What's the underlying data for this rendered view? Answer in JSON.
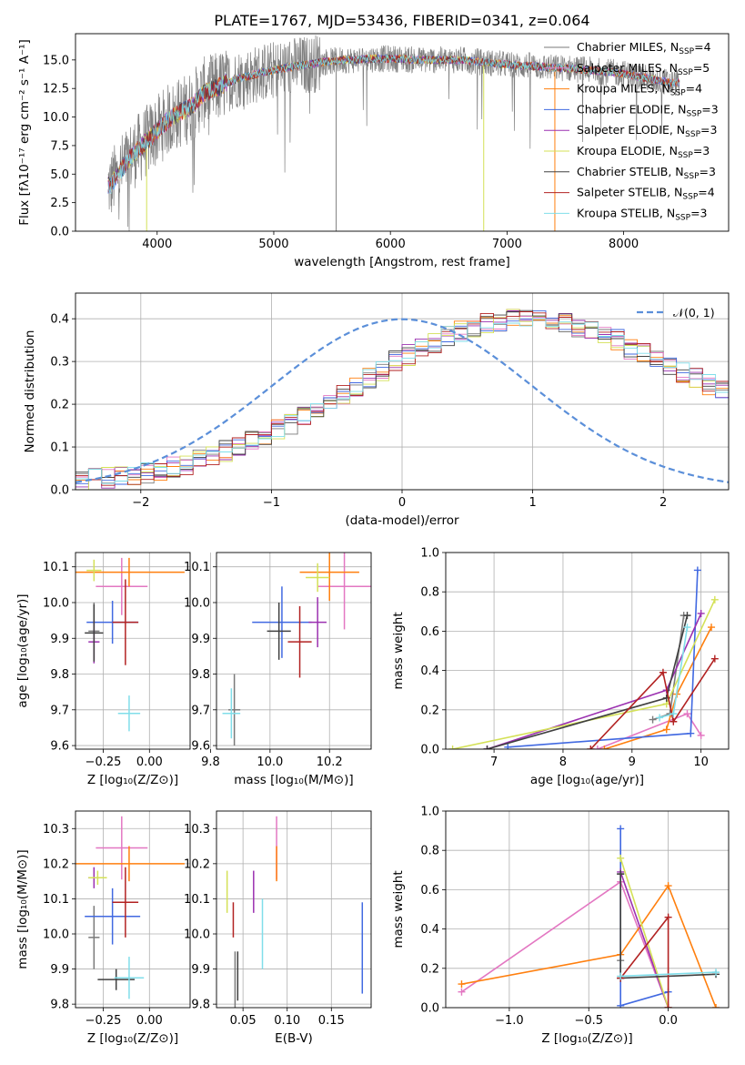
{
  "figure_title": "PLATE=1767, MJD=53436, FIBERID=0341, z=0.064",
  "colors": {
    "Chabrier MILES": "#7a7a7a",
    "Salpeter MILES": "#e377c2",
    "Kroupa MILES": "#ff7f0e",
    "Chabrier ELODIE": "#4169e1",
    "Salpeter ELODIE": "#9b30b0",
    "Kroupa ELODIE": "#d4e157",
    "Chabrier STELIB": "#404040",
    "Salpeter STELIB": "#b22222",
    "Kroupa STELIB": "#80deea",
    "normal": "#5b8fd9"
  },
  "chart_data": [
    {
      "id": "spectrum",
      "type": "line",
      "xlabel": "wavelength [Angstrom, rest frame]",
      "ylabel": "Flux [fλ10⁻¹⁷ erg cm⁻² s⁻¹ A⁻¹]",
      "xlim": [
        3300,
        8900
      ],
      "ylim": [
        0,
        17.3
      ],
      "xticks": [
        "4000",
        "5000",
        "6000",
        "7000",
        "8000"
      ],
      "yticks": [
        "0.0",
        "2.5",
        "5.0",
        "7.5",
        "10.0",
        "12.5",
        "15.0"
      ],
      "x": [
        3600,
        3700,
        3800,
        3900,
        4000,
        4100,
        4200,
        4300,
        4400,
        4500,
        4600,
        4700,
        4800,
        4900,
        5000,
        5100,
        5200,
        5300,
        5400,
        5500,
        5600,
        5700,
        5800,
        5900,
        6000,
        6100,
        6200,
        6300,
        6400,
        6500,
        6600,
        6700,
        6800,
        6900,
        7000,
        7100,
        7200,
        7300,
        7400,
        7500,
        7600,
        7700,
        7800,
        7900,
        8000,
        8100,
        8200,
        8300,
        8400
      ],
      "model_flux": [
        4.0,
        5.5,
        6.8,
        7.8,
        8.8,
        9.8,
        10.4,
        11.0,
        12.1,
        12.5,
        13.0,
        13.4,
        13.6,
        13.9,
        14.1,
        14.3,
        14.5,
        14.6,
        14.8,
        14.9,
        15.0,
        15.0,
        15.1,
        15.1,
        15.1,
        15.1,
        15.0,
        15.0,
        15.0,
        15.0,
        15.0,
        14.9,
        14.8,
        14.7,
        14.6,
        14.5,
        14.5,
        14.4,
        14.3,
        14.3,
        14.2,
        14.1,
        14.0,
        13.9,
        13.8,
        13.6,
        13.4,
        13.2,
        13.0
      ],
      "legend": [
        {
          "name": "Chabrier MILES, N",
          "sub": "SSP",
          "n": "=4"
        },
        {
          "name": "Salpeter MILES, N",
          "sub": "SSP",
          "n": "=5"
        },
        {
          "name": "Kroupa MILES, N",
          "sub": "SSP",
          "n": "=4"
        },
        {
          "name": "Chabrier ELODIE, N",
          "sub": "SSP",
          "n": "=3"
        },
        {
          "name": "Salpeter ELODIE, N",
          "sub": "SSP",
          "n": "=3"
        },
        {
          "name": "Kroupa ELODIE, N",
          "sub": "SSP",
          "n": "=3"
        },
        {
          "name": "Chabrier STELIB, N",
          "sub": "SSP",
          "n": "=3"
        },
        {
          "name": "Salpeter STELIB, N",
          "sub": "SSP",
          "n": "=4"
        },
        {
          "name": "Kroupa STELIB, N",
          "sub": "SSP",
          "n": "=3"
        }
      ]
    },
    {
      "id": "residuals",
      "type": "histogram",
      "xlabel": "(data-model)/error",
      "ylabel": "Normed distribution",
      "xlim": [
        -2.5,
        2.5
      ],
      "ylim": [
        0,
        0.46
      ],
      "xticks": [
        "−2",
        "−1",
        "0",
        "1",
        "2"
      ],
      "yticks": [
        "0.0",
        "0.1",
        "0.2",
        "0.3",
        "0.4"
      ],
      "legend": "𝒩(0, 1)",
      "bin_width": 0.1,
      "x_start": -2.5,
      "base_values": [
        0.022,
        0.025,
        0.028,
        0.032,
        0.036,
        0.04,
        0.046,
        0.052,
        0.06,
        0.068,
        0.078,
        0.09,
        0.1,
        0.115,
        0.125,
        0.14,
        0.155,
        0.17,
        0.19,
        0.205,
        0.22,
        0.24,
        0.26,
        0.28,
        0.3,
        0.315,
        0.33,
        0.345,
        0.36,
        0.37,
        0.38,
        0.39,
        0.395,
        0.4,
        0.4,
        0.4,
        0.395,
        0.39,
        0.38,
        0.37,
        0.36,
        0.35,
        0.33,
        0.32,
        0.305,
        0.29,
        0.275,
        0.26,
        0.245,
        0.23,
        0.215,
        0.2,
        0.185,
        0.17,
        0.155,
        0.14,
        0.125,
        0.11,
        0.1,
        0.09,
        0.08,
        0.07,
        0.06,
        0.052,
        0.045,
        0.04,
        0.035,
        0.03,
        0.027,
        0.024,
        0.022,
        0.02
      ],
      "normal_curve": {
        "mu": 0,
        "sigma": 1
      }
    },
    {
      "id": "age_vs_Z",
      "type": "errorbar",
      "xlabel": "Z [log₁₀(Z/Z⊙)]",
      "ylabel": "age  [log₁₀(age/yr)]",
      "xlim": [
        -0.4,
        0.22
      ],
      "ylim": [
        9.59,
        10.14
      ],
      "xticks": [
        "−0.25",
        "0.00"
      ],
      "yticks": [
        "9.6",
        "9.7",
        "9.8",
        "9.9",
        "10.0",
        "10.1"
      ],
      "points": [
        {
          "model": "Chabrier MILES",
          "x": -0.3,
          "y": 9.92,
          "xerr": 0.03,
          "yerr": 0.08
        },
        {
          "model": "Salpeter MILES",
          "x": -0.15,
          "y": 10.045,
          "xerr": 0.14,
          "yerr": 0.08
        },
        {
          "model": "Kroupa MILES",
          "x": -0.11,
          "y": 10.085,
          "xerr": 0.3,
          "yerr": 0.04
        },
        {
          "model": "Chabrier ELODIE",
          "x": -0.2,
          "y": 9.945,
          "xerr": 0.14,
          "yerr": 0.06
        },
        {
          "model": "Salpeter ELODIE",
          "x": -0.3,
          "y": 9.89,
          "xerr": 0.03,
          "yerr": 0.06
        },
        {
          "model": "Kroupa ELODIE",
          "x": -0.3,
          "y": 10.09,
          "xerr": 0.04,
          "yerr": 0.03
        },
        {
          "model": "Chabrier STELIB",
          "x": -0.3,
          "y": 9.915,
          "xerr": 0.05,
          "yerr": 0.08
        },
        {
          "model": "Salpeter STELIB",
          "x": -0.13,
          "y": 9.945,
          "xerr": 0.07,
          "yerr": 0.12
        },
        {
          "model": "Kroupa STELIB",
          "x": -0.11,
          "y": 9.69,
          "xerr": 0.06,
          "yerr": 0.05
        }
      ]
    },
    {
      "id": "age_vs_mass",
      "type": "errorbar",
      "xlabel": "mass [log₁₀(M/M⊙)]",
      "ylabel": "",
      "xlim": [
        9.82,
        10.34
      ],
      "ylim": [
        9.59,
        10.14
      ],
      "xticks": [
        "9.8",
        "10.0",
        "10.2"
      ],
      "yticks": [
        "9.6",
        "9.7",
        "9.8",
        "9.9",
        "10.0",
        "10.1"
      ],
      "points": [
        {
          "model": "Chabrier MILES",
          "x": 9.88,
          "y": 9.7,
          "xerr": 0.02,
          "yerr": 0.1
        },
        {
          "model": "Salpeter MILES",
          "x": 10.25,
          "y": 10.045,
          "xerr": 0.09,
          "yerr": 0.12
        },
        {
          "model": "Kroupa MILES",
          "x": 10.2,
          "y": 10.085,
          "xerr": 0.1,
          "yerr": 0.08
        },
        {
          "model": "Chabrier ELODIE",
          "x": 10.04,
          "y": 9.945,
          "xerr": 0.1,
          "yerr": 0.1
        },
        {
          "model": "Salpeter ELODIE",
          "x": 10.16,
          "y": 9.945,
          "xerr": 0.03,
          "yerr": 0.07
        },
        {
          "model": "Kroupa ELODIE",
          "x": 10.16,
          "y": 10.07,
          "xerr": 0.04,
          "yerr": 0.04
        },
        {
          "model": "Chabrier STELIB",
          "x": 10.03,
          "y": 9.92,
          "xerr": 0.04,
          "yerr": 0.08
        },
        {
          "model": "Salpeter STELIB",
          "x": 10.1,
          "y": 9.89,
          "xerr": 0.04,
          "yerr": 0.1
        },
        {
          "model": "Kroupa STELIB",
          "x": 9.87,
          "y": 9.69,
          "xerr": 0.03,
          "yerr": 0.07
        }
      ]
    },
    {
      "id": "weight_vs_age",
      "type": "line",
      "xlabel": "age  [log₁₀(age/yr)]",
      "ylabel": "mass weight",
      "xlim": [
        6.3,
        10.4
      ],
      "ylim": [
        0,
        1
      ],
      "xticks": [
        "7",
        "8",
        "9",
        "10"
      ],
      "yticks": [
        "0.0",
        "0.2",
        "0.4",
        "0.6",
        "0.8",
        "1.0"
      ],
      "series": [
        {
          "model": "Chabrier MILES",
          "x": [
            9.3,
            9.55,
            9.75
          ],
          "y": [
            0.15,
            0.18,
            0.68
          ]
        },
        {
          "model": "Salpeter MILES",
          "x": [
            8.5,
            9.8,
            10.0
          ],
          "y": [
            0.0,
            0.18,
            0.07
          ]
        },
        {
          "model": "Kroupa MILES",
          "x": [
            8.6,
            9.5,
            9.65,
            10.15
          ],
          "y": [
            0.0,
            0.1,
            0.28,
            0.62
          ]
        },
        {
          "model": "Chabrier ELODIE",
          "x": [
            7.2,
            9.85,
            9.95
          ],
          "y": [
            0.01,
            0.08,
            0.91
          ]
        },
        {
          "model": "Salpeter ELODIE",
          "x": [
            6.9,
            9.5,
            10.0
          ],
          "y": [
            0.0,
            0.3,
            0.69
          ]
        },
        {
          "model": "Kroupa ELODIE",
          "x": [
            6.4,
            9.5,
            10.2
          ],
          "y": [
            0.0,
            0.23,
            0.76
          ]
        },
        {
          "model": "Chabrier STELIB",
          "x": [
            6.9,
            9.5,
            9.8
          ],
          "y": [
            0.0,
            0.26,
            0.68
          ]
        },
        {
          "model": "Salpeter STELIB",
          "x": [
            8.4,
            9.45,
            9.6,
            10.2
          ],
          "y": [
            0.0,
            0.39,
            0.14,
            0.46
          ]
        },
        {
          "model": "Kroupa STELIB",
          "x": [
            9.4,
            9.6,
            9.8
          ],
          "y": [
            0.16,
            0.18,
            0.62
          ]
        }
      ]
    },
    {
      "id": "mass_vs_Z",
      "type": "errorbar",
      "xlabel": "Z [log₁₀(Z/Z⊙)]",
      "ylabel": "mass [log₁₀(M/M⊙)]",
      "xlim": [
        -0.4,
        0.22
      ],
      "ylim": [
        9.79,
        10.35
      ],
      "xticks": [
        "−0.25",
        "0.00"
      ],
      "yticks": [
        "9.8",
        "9.9",
        "10.0",
        "10.1",
        "10.2",
        "10.3"
      ],
      "points": [
        {
          "model": "Chabrier MILES",
          "x": -0.3,
          "y": 9.99,
          "xerr": 0.03,
          "yerr": 0.09
        },
        {
          "model": "Salpeter MILES",
          "x": -0.15,
          "y": 10.245,
          "xerr": 0.14,
          "yerr": 0.09
        },
        {
          "model": "Kroupa MILES",
          "x": -0.11,
          "y": 10.2,
          "xerr": 0.3,
          "yerr": 0.05
        },
        {
          "model": "Chabrier ELODIE",
          "x": -0.2,
          "y": 10.05,
          "xerr": 0.15,
          "yerr": 0.08
        },
        {
          "model": "Salpeter ELODIE",
          "x": -0.3,
          "y": 10.16,
          "xerr": 0.03,
          "yerr": 0.03
        },
        {
          "model": "Kroupa ELODIE",
          "x": -0.28,
          "y": 10.16,
          "xerr": 0.05,
          "yerr": 0.02
        },
        {
          "model": "Chabrier STELIB",
          "x": -0.18,
          "y": 9.87,
          "xerr": 0.1,
          "yerr": 0.03
        },
        {
          "model": "Salpeter STELIB",
          "x": -0.13,
          "y": 10.09,
          "xerr": 0.07,
          "yerr": 0.1
        },
        {
          "model": "Kroupa STELIB",
          "x": -0.11,
          "y": 9.875,
          "xerr": 0.08,
          "yerr": 0.06
        }
      ]
    },
    {
      "id": "mass_vs_ebv",
      "type": "errorbar",
      "xlabel": "E(B-V)",
      "ylabel": "",
      "xlim": [
        0.02,
        0.195
      ],
      "ylim": [
        9.79,
        10.35
      ],
      "xticks": [
        "0.05",
        "0.10",
        "0.15"
      ],
      "yticks": [
        "9.8",
        "9.9",
        "10.0",
        "10.1",
        "10.2",
        "10.3"
      ],
      "points": [
        {
          "model": "Chabrier MILES",
          "x": 0.041,
          "y": 9.87,
          "xerr": 0,
          "yerr": 0.08
        },
        {
          "model": "Salpeter MILES",
          "x": 0.088,
          "y": 10.245,
          "xerr": 0,
          "yerr": 0.09
        },
        {
          "model": "Kroupa MILES",
          "x": 0.088,
          "y": 10.2,
          "xerr": 0,
          "yerr": 0.05
        },
        {
          "model": "Chabrier ELODIE",
          "x": 0.185,
          "y": 9.96,
          "xerr": 0,
          "yerr": 0.13
        },
        {
          "model": "Salpeter ELODIE",
          "x": 0.062,
          "y": 10.12,
          "xerr": 0,
          "yerr": 0.06
        },
        {
          "model": "Kroupa ELODIE",
          "x": 0.032,
          "y": 10.12,
          "xerr": 0,
          "yerr": 0.06
        },
        {
          "model": "Chabrier STELIB",
          "x": 0.044,
          "y": 9.88,
          "xerr": 0,
          "yerr": 0.07
        },
        {
          "model": "Salpeter STELIB",
          "x": 0.039,
          "y": 10.04,
          "xerr": 0,
          "yerr": 0.05
        },
        {
          "model": "Kroupa STELIB",
          "x": 0.072,
          "y": 10.0,
          "xerr": 0,
          "yerr": 0.1
        }
      ]
    },
    {
      "id": "weight_vs_Z",
      "type": "line",
      "xlabel": "Z [log₁₀(Z/Z⊙)]",
      "ylabel": "mass weight",
      "xlim": [
        -1.4,
        0.38
      ],
      "ylim": [
        0,
        1
      ],
      "xticks": [
        "−1.0",
        "−0.5",
        "0.0"
      ],
      "yticks": [
        "0.0",
        "0.2",
        "0.4",
        "0.6",
        "0.8",
        "1.0"
      ],
      "series": [
        {
          "model": "Chabrier MILES",
          "x": [
            -0.3,
            -0.3,
            -0.3
          ],
          "y": [
            0.68,
            0.24,
            0.15
          ]
        },
        {
          "model": "Salpeter MILES",
          "x": [
            -1.3,
            -0.3,
            0.0
          ],
          "y": [
            0.08,
            0.64,
            0.0
          ]
        },
        {
          "model": "Kroupa MILES",
          "x": [
            -1.3,
            -0.3,
            0.0,
            0.3
          ],
          "y": [
            0.12,
            0.27,
            0.62,
            0.0
          ]
        },
        {
          "model": "Chabrier ELODIE",
          "x": [
            -0.3,
            -0.3,
            0.0
          ],
          "y": [
            0.91,
            0.01,
            0.08
          ]
        },
        {
          "model": "Salpeter ELODIE",
          "x": [
            -0.3,
            0.0
          ],
          "y": [
            0.69,
            0.0
          ]
        },
        {
          "model": "Kroupa ELODIE",
          "x": [
            -0.3,
            0.0
          ],
          "y": [
            0.76,
            0.0
          ]
        },
        {
          "model": "Chabrier STELIB",
          "x": [
            -0.3,
            -0.3,
            0.3
          ],
          "y": [
            0.68,
            0.15,
            0.17
          ]
        },
        {
          "model": "Salpeter STELIB",
          "x": [
            -0.3,
            0.0,
            0.0
          ],
          "y": [
            0.15,
            0.46,
            0.0
          ]
        },
        {
          "model": "Kroupa STELIB",
          "x": [
            -0.3,
            0.3
          ],
          "y": [
            0.16,
            0.18
          ]
        }
      ]
    }
  ]
}
